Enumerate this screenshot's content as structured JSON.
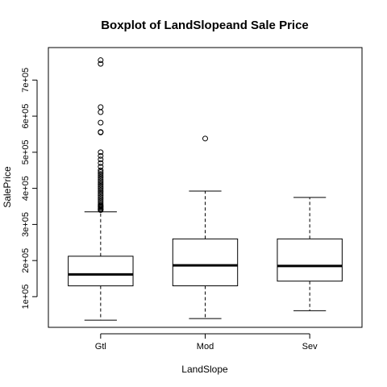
{
  "chart_data": {
    "type": "boxplot",
    "title": "Boxplot of LandSlopeand Sale Price",
    "xlabel": "LandSlope",
    "ylabel": "SalePrice",
    "ylim": [
      15000,
      790000
    ],
    "y_ticks": [
      100000,
      200000,
      300000,
      400000,
      500000,
      600000,
      700000
    ],
    "y_tick_labels": [
      "1e+05",
      "2e+05",
      "3e+05",
      "4e+05",
      "5e+05",
      "6e+05",
      "7e+05"
    ],
    "categories": [
      "Gtl",
      "Mod",
      "Sev"
    ],
    "boxes": [
      {
        "category": "Gtl",
        "whisker_low": 34900,
        "q1": 129900,
        "median": 161500,
        "q3": 212000,
        "whisker_high": 335000,
        "outliers": [
          340000,
          341000,
          342000,
          345000,
          348000,
          350000,
          352000,
          355000,
          360000,
          365000,
          370000,
          375000,
          380000,
          385000,
          390000,
          395000,
          400000,
          405000,
          410000,
          415000,
          420000,
          425000,
          430000,
          435000,
          440000,
          445000,
          450000,
          460000,
          470000,
          480000,
          490000,
          500000,
          555000,
          556000,
          582000,
          611000,
          625000,
          745000,
          755000
        ]
      },
      {
        "category": "Mod",
        "whisker_low": 39300,
        "q1": 130000,
        "median": 186700,
        "q3": 260000,
        "whisker_high": 392500,
        "outliers": [
          538000
        ]
      },
      {
        "category": "Sev",
        "whisker_low": 61000,
        "q1": 143000,
        "median": 185000,
        "q3": 260000,
        "whisker_high": 375000,
        "outliers": []
      }
    ]
  }
}
